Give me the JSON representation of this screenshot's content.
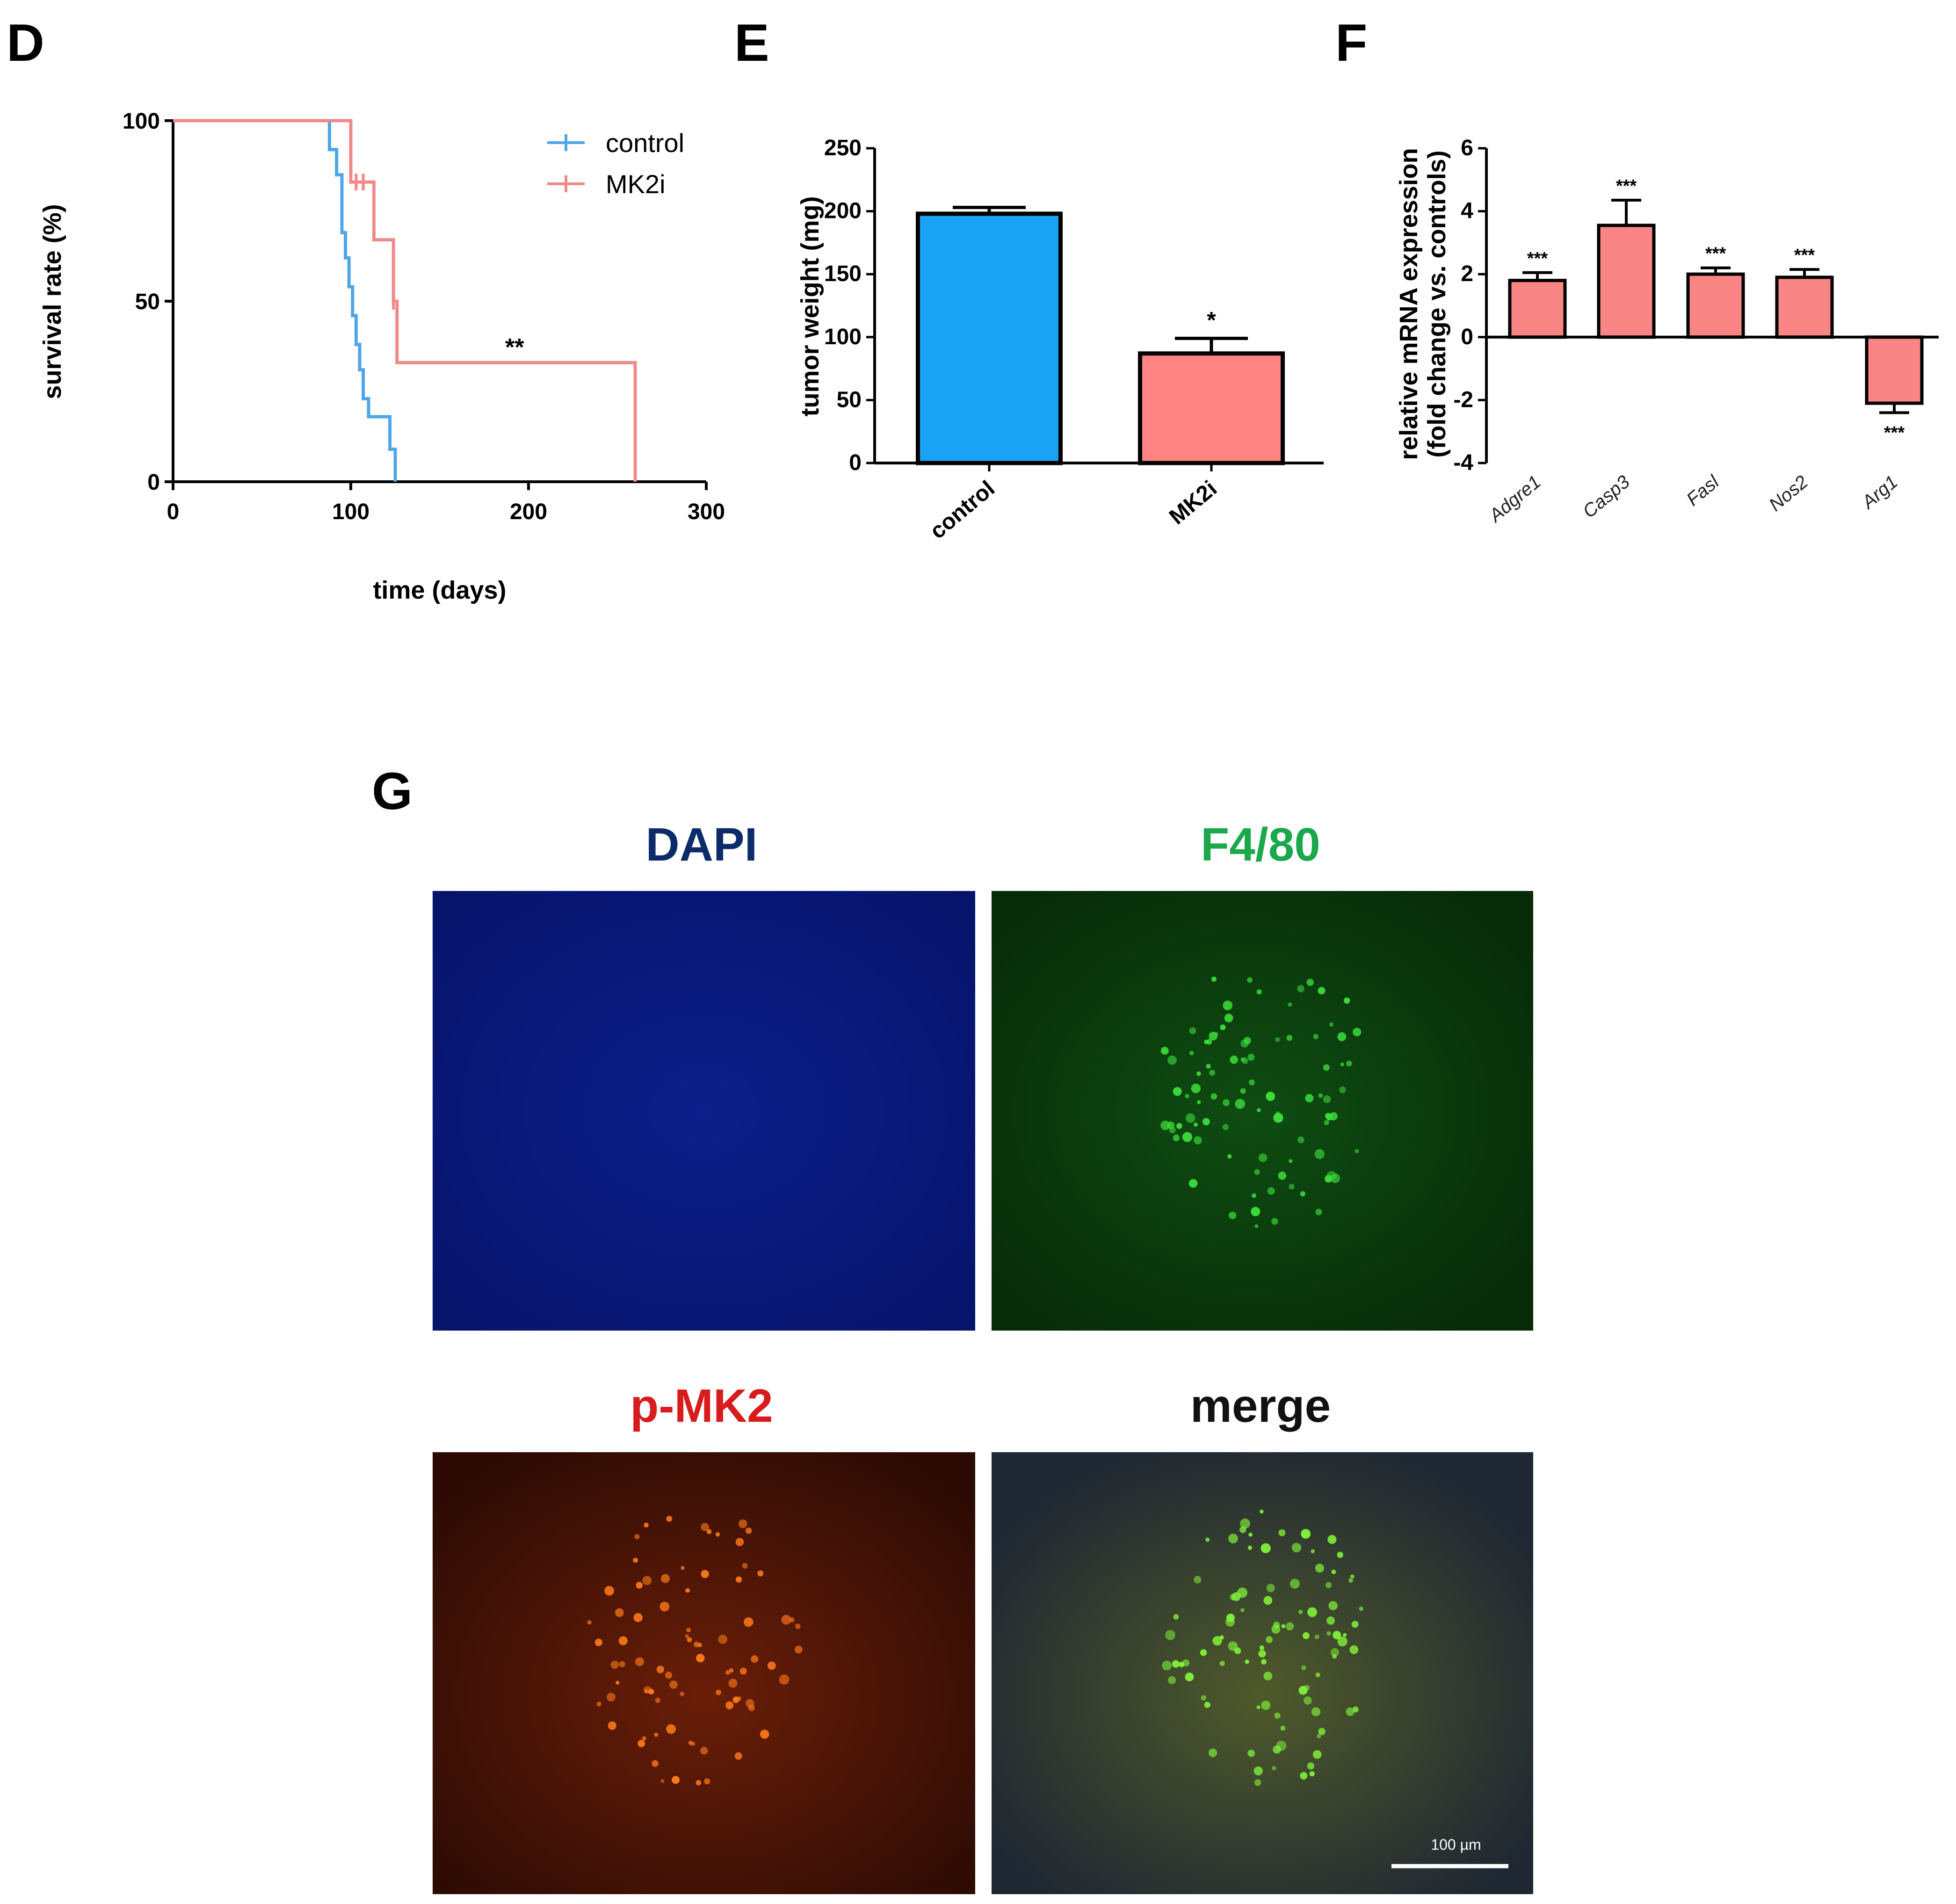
{
  "chart_data": [
    {
      "panel": "D",
      "type": "line",
      "xlabel": "time (days)",
      "ylabel": "survival rate (%)",
      "xlim": [
        0,
        300
      ],
      "ylim": [
        0,
        100
      ],
      "xticks": [
        "0",
        "100",
        "200",
        "300"
      ],
      "yticks": [
        "0",
        "50",
        "100"
      ],
      "legend_position": "top-right",
      "series": [
        {
          "name": "control",
          "color": "#4ea6e6",
          "x": [
            0,
            85,
            88,
            92,
            95,
            97,
            99,
            101,
            103,
            105,
            107,
            110,
            120,
            122,
            125
          ],
          "y": [
            100,
            100,
            92,
            85,
            69,
            62,
            54,
            46,
            38,
            31,
            23,
            18,
            18,
            9,
            0
          ]
        },
        {
          "name": "MK2i",
          "color": "#f08a8a",
          "x": [
            0,
            97,
            100,
            110,
            113,
            122,
            124,
            126,
            260,
            260
          ],
          "y": [
            100,
            100,
            83,
            83,
            67,
            67,
            50,
            33,
            33,
            0
          ]
        }
      ],
      "censor_marks": [
        {
          "series": "MK2i",
          "x": 103,
          "y": 83
        },
        {
          "series": "MK2i",
          "x": 107,
          "y": 83
        },
        {
          "series": "MK2i",
          "x": 124,
          "y": 50
        }
      ],
      "annotations": [
        "**"
      ]
    },
    {
      "panel": "E",
      "type": "bar",
      "ylabel": "tumor weight (mg)",
      "ylim": [
        0,
        250
      ],
      "yticks": [
        "0",
        "50",
        "100",
        "150",
        "200",
        "250"
      ],
      "categories": [
        "control",
        "MK2i"
      ],
      "values": [
        198,
        87
      ],
      "errors": [
        5,
        12
      ],
      "colors": [
        "#1aa3f5",
        "#ff8585"
      ],
      "annotations": [
        "",
        "*"
      ]
    },
    {
      "panel": "F",
      "type": "bar",
      "ylabel": [
        "relative mRNA expression",
        "(fold change vs. controls)"
      ],
      "ylim": [
        -4,
        6
      ],
      "yticks": [
        "-4",
        "-2",
        "0",
        "2",
        "4",
        "6"
      ],
      "categories": [
        "Adgre1",
        "Casp3",
        "Fasl",
        "Nos2",
        "Arg1"
      ],
      "values": [
        1.8,
        3.55,
        2.0,
        1.9,
        -2.1
      ],
      "errors": [
        0.25,
        0.8,
        0.2,
        0.25,
        0.3
      ],
      "color": "#f98585",
      "annotations": [
        "***",
        "***",
        "***",
        "***",
        "***"
      ]
    }
  ],
  "panel_letters": {
    "D": "D",
    "E": "E",
    "F": "F",
    "G": "G"
  },
  "microscopy": {
    "titles": {
      "dapi": "DAPI",
      "f480": "F4/80",
      "pmk2": "p-MK2",
      "merge": "merge"
    },
    "title_colors": {
      "dapi": "#0b2b6b",
      "f480": "#1aa84a",
      "pmk2": "#d81c1c",
      "merge": "#111111"
    },
    "scale_bar_label": "100 µm"
  }
}
